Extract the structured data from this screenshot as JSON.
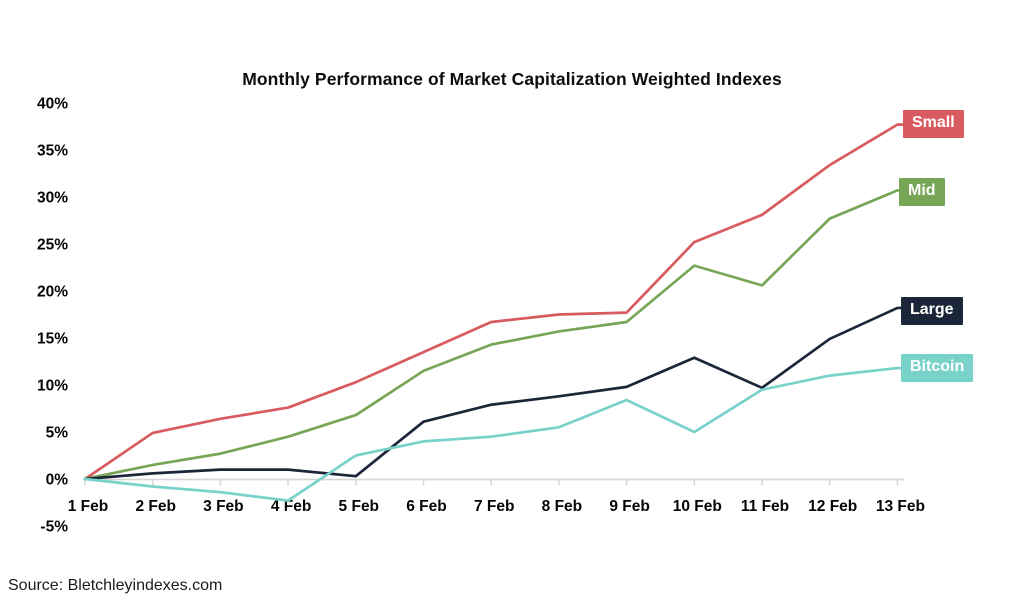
{
  "source_caption": "Source: Bletchleyindexes.com",
  "legend": [
    {
      "label": "Small",
      "color": "#d85c5f"
    },
    {
      "label": "Mid",
      "color": "#78a657"
    },
    {
      "label": "Large",
      "color": "#1b2638"
    },
    {
      "label": "Bitcoin",
      "color": "#79d2ca"
    }
  ],
  "chart_data": {
    "type": "line",
    "title": "Monthly Performance of Market Capitalization Weighted Indexes",
    "categories": [
      "1 Feb",
      "2 Feb",
      "3 Feb",
      "4 Feb",
      "5 Feb",
      "6 Feb",
      "7 Feb",
      "8 Feb",
      "9 Feb",
      "10 Feb",
      "11 Feb",
      "12 Feb",
      "13 Feb"
    ],
    "series": [
      {
        "name": "Small",
        "color": "#d85c5f",
        "values": [
          0,
          4.9,
          6.4,
          7.6,
          10.3,
          13.5,
          16.7,
          17.5,
          17.7,
          25.2,
          28.1,
          33.4,
          37.7
        ]
      },
      {
        "name": "Mid",
        "color": "#78a657",
        "values": [
          0,
          1.5,
          2.7,
          4.5,
          6.8,
          11.5,
          14.3,
          15.7,
          16.7,
          22.7,
          20.6,
          27.7,
          30.7
        ]
      },
      {
        "name": "Large",
        "color": "#1b2638",
        "values": [
          0,
          0.6,
          1.0,
          1.0,
          0.3,
          6.1,
          7.9,
          8.8,
          9.8,
          12.9,
          9.7,
          14.9,
          18.2
        ]
      },
      {
        "name": "Bitcoin",
        "color": "#79d2ca",
        "values": [
          0,
          -0.8,
          -1.4,
          -2.3,
          2.5,
          4.0,
          4.5,
          5.5,
          8.4,
          5.0,
          9.5,
          11.0,
          11.8
        ]
      }
    ],
    "xlabel": "",
    "ylabel": "",
    "ylim": [
      -5,
      40
    ],
    "y_ticks": [
      40,
      35,
      30,
      25,
      20,
      15,
      10,
      5,
      0,
      -5
    ],
    "y_tick_labels": [
      "40%",
      "35%",
      "30%",
      "25%",
      "20%",
      "15%",
      "10%",
      "5%",
      "0%",
      "-5%"
    ],
    "grid": "off",
    "legend_position": "right-of-line-ends",
    "axis_color": "#d6d6d6"
  }
}
